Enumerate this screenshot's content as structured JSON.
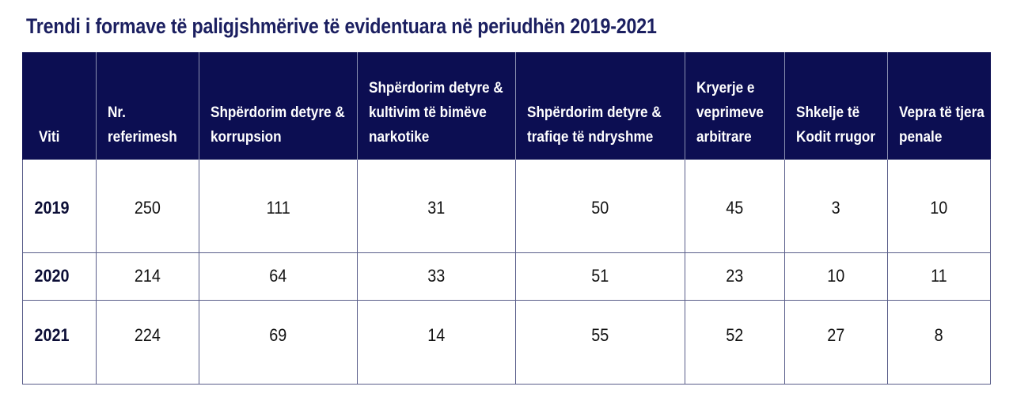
{
  "title": "Trendi i formave të paligjshmërive të evidentuara në periudhën 2019-2021",
  "table": {
    "headers": [
      "Viti",
      "Nr. referimesh",
      "Shpërdorim detyre & korrupsion",
      "Shpërdorim detyre & kultivim të bimëve narkotike",
      "Shpërdorim detyre & trafiqe të ndryshme",
      "Kryerje e veprimeve arbitrare",
      "Shkelje të Kodit rrugor",
      "Vepra të tjera penale"
    ],
    "rows": [
      {
        "year": "2019",
        "values": [
          "250",
          "111",
          "31",
          "50",
          "45",
          "3",
          "10"
        ]
      },
      {
        "year": "2020",
        "values": [
          "214",
          "64",
          "33",
          "51",
          "23",
          "10",
          "11"
        ]
      },
      {
        "year": "2021",
        "values": [
          "224",
          "69",
          "14",
          "55",
          "52",
          "27",
          "8"
        ]
      }
    ]
  },
  "colors": {
    "header_bg": "#0c0e52",
    "title": "#1b1f60",
    "border": "#5a5e8a"
  }
}
